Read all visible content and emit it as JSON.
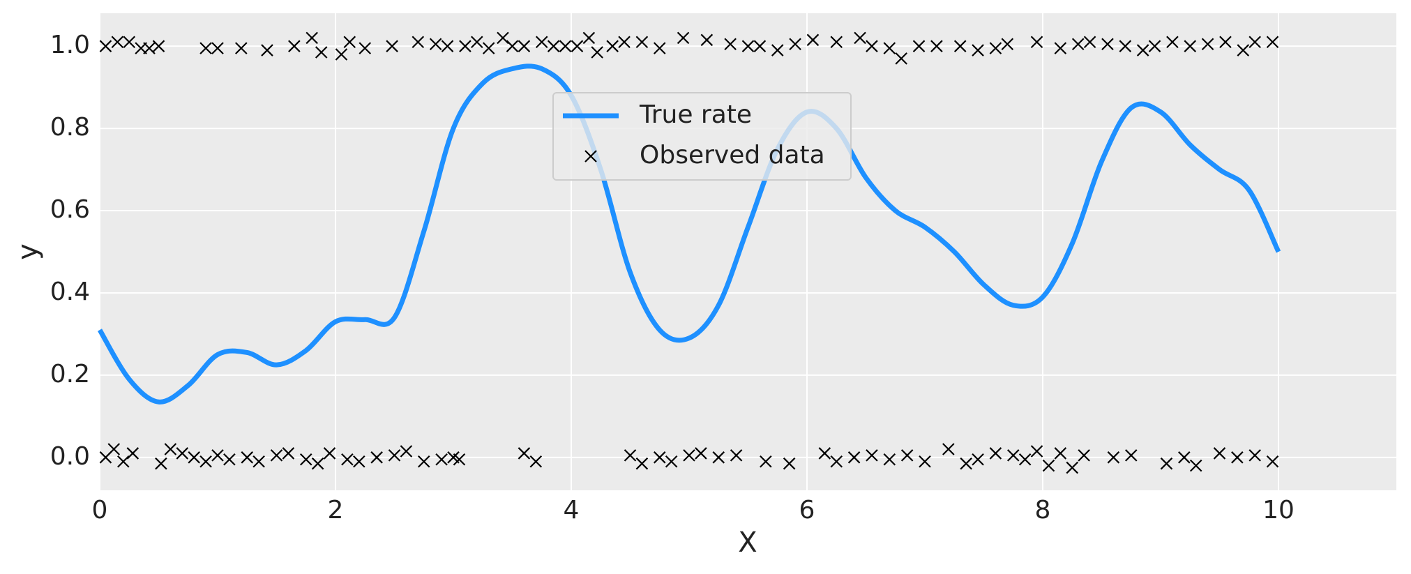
{
  "chart_data": {
    "type": "line",
    "xlabel": "X",
    "ylabel": "y",
    "xlim": [
      0,
      11
    ],
    "ylim": [
      -0.08,
      1.08
    ],
    "xticks": [
      0,
      2,
      4,
      6,
      8,
      10
    ],
    "yticks": [
      {
        "value": 0,
        "label": "0.0"
      },
      {
        "value": 0.2,
        "label": "0.2"
      },
      {
        "value": 0.4,
        "label": "0.4"
      },
      {
        "value": 0.6,
        "label": "0.6"
      },
      {
        "value": 0.8,
        "label": "0.8"
      },
      {
        "value": 1,
        "label": "1.0"
      }
    ],
    "grid": true,
    "legend": "upper center",
    "series": [
      {
        "name": "True rate",
        "type": "line",
        "color": "#1e90ff",
        "x": [
          0,
          0.25,
          0.5,
          0.75,
          1,
          1.25,
          1.5,
          1.75,
          2,
          2.25,
          2.5,
          2.75,
          3,
          3.25,
          3.5,
          3.75,
          4,
          4.25,
          4.5,
          4.75,
          5,
          5.25,
          5.5,
          5.75,
          6,
          6.25,
          6.5,
          6.75,
          7,
          7.25,
          7.5,
          7.75,
          8,
          8.25,
          8.5,
          8.75,
          9,
          9.25,
          9.5,
          9.75,
          10
        ],
        "values": [
          0.31,
          0.19,
          0.135,
          0.175,
          0.25,
          0.255,
          0.225,
          0.26,
          0.33,
          0.335,
          0.34,
          0.55,
          0.8,
          0.91,
          0.945,
          0.945,
          0.88,
          0.7,
          0.45,
          0.31,
          0.29,
          0.37,
          0.56,
          0.75,
          0.84,
          0.8,
          0.68,
          0.6,
          0.56,
          0.5,
          0.42,
          0.37,
          0.39,
          0.52,
          0.72,
          0.85,
          0.84,
          0.76,
          0.7,
          0.65,
          0.5
        ]
      },
      {
        "name": "Observed data",
        "type": "scatter",
        "color": "#000000",
        "x": [
          0.05,
          0.15,
          0.25,
          0.35,
          0.42,
          0.5,
          0.9,
          1.0,
          1.2,
          1.42,
          1.65,
          1.8,
          1.88,
          2.05,
          2.12,
          2.25,
          2.48,
          2.7,
          2.85,
          2.95,
          3.1,
          3.2,
          3.3,
          3.42,
          3.5,
          3.6,
          3.75,
          3.85,
          3.95,
          4.05,
          4.15,
          4.22,
          4.35,
          4.45,
          4.6,
          4.75,
          4.95,
          5.15,
          5.35,
          5.5,
          5.6,
          5.75,
          5.9,
          6.05,
          6.25,
          6.45,
          6.55,
          6.7,
          6.8,
          6.95,
          7.1,
          7.3,
          7.45,
          7.6,
          7.7,
          7.95,
          8.15,
          8.3,
          8.4,
          8.55,
          8.7,
          8.85,
          8.95,
          9.1,
          9.25,
          9.4,
          9.55,
          9.7,
          9.8,
          9.95,
          0.05,
          0.12,
          0.2,
          0.28,
          0.52,
          0.6,
          0.7,
          0.8,
          0.9,
          1.0,
          1.1,
          1.25,
          1.35,
          1.5,
          1.6,
          1.75,
          1.85,
          1.95,
          2.1,
          2.2,
          2.35,
          2.5,
          2.6,
          2.75,
          2.9,
          3.0,
          3.05,
          3.6,
          3.7,
          4.5,
          4.6,
          4.75,
          4.85,
          5.0,
          5.1,
          5.25,
          5.4,
          5.65,
          5.85,
          6.15,
          6.25,
          6.4,
          6.55,
          6.7,
          6.85,
          7.0,
          7.2,
          7.35,
          7.45,
          7.6,
          7.75,
          7.85,
          7.95,
          8.05,
          8.15,
          8.25,
          8.35,
          8.6,
          8.75,
          9.05,
          9.2,
          9.3,
          9.5,
          9.65,
          9.8,
          9.95
        ],
        "values": [
          1.0,
          1.01,
          1.01,
          0.995,
          0.995,
          1.0,
          0.995,
          0.995,
          0.995,
          0.99,
          1.0,
          1.02,
          0.985,
          0.98,
          1.01,
          0.995,
          1.0,
          1.01,
          1.005,
          1.0,
          1.0,
          1.01,
          0.995,
          1.02,
          1.0,
          1.0,
          1.01,
          1.0,
          1.0,
          1.0,
          1.02,
          0.985,
          1.0,
          1.01,
          1.01,
          0.995,
          1.02,
          1.015,
          1.005,
          1.0,
          1.0,
          0.99,
          1.005,
          1.015,
          1.01,
          1.02,
          1.0,
          0.995,
          0.97,
          1.0,
          1.0,
          1.0,
          0.99,
          0.995,
          1.005,
          1.01,
          0.995,
          1.005,
          1.01,
          1.005,
          1.0,
          0.99,
          1.0,
          1.01,
          1.0,
          1.005,
          1.01,
          0.99,
          1.01,
          1.01,
          0.0,
          0.02,
          -0.01,
          0.01,
          -0.015,
          0.02,
          0.01,
          0.0,
          -0.01,
          0.005,
          -0.005,
          0.0,
          -0.01,
          0.005,
          0.01,
          -0.005,
          -0.015,
          0.01,
          -0.005,
          -0.01,
          0.0,
          0.005,
          0.015,
          -0.01,
          -0.005,
          0.0,
          -0.005,
          0.01,
          -0.01,
          0.005,
          -0.015,
          0.0,
          -0.01,
          0.005,
          0.01,
          0.0,
          0.005,
          -0.01,
          -0.015,
          0.01,
          -0.01,
          0.0,
          0.005,
          -0.005,
          0.005,
          -0.01,
          0.02,
          -0.015,
          -0.005,
          0.01,
          0.005,
          -0.005,
          0.015,
          -0.02,
          0.01,
          -0.025,
          0.005,
          0.0,
          0.005,
          -0.015,
          0.0,
          -0.02,
          0.01,
          0.0,
          0.005,
          -0.01
        ]
      }
    ]
  }
}
